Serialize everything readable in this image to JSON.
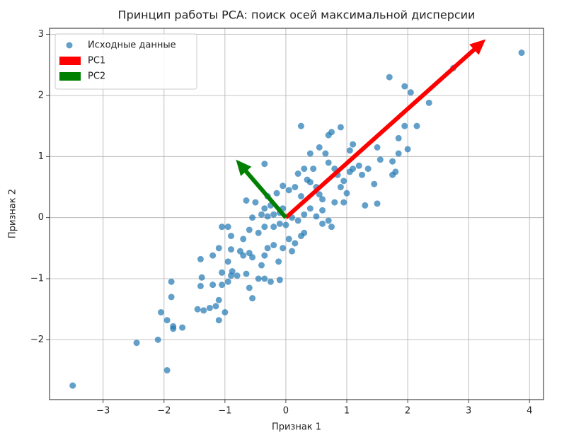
{
  "chart_data": {
    "type": "scatter",
    "title": "Принцип работы PCA: поиск осей максимальной дисперсии",
    "xlabel": "Признак 1",
    "ylabel": "Признак 2",
    "xlim": [
      -3.88,
      4.23
    ],
    "ylim": [
      -2.98,
      3.1
    ],
    "xticks": [
      {
        "value": -3,
        "label": "−3"
      },
      {
        "value": -2,
        "label": "−2"
      },
      {
        "value": -1,
        "label": "−1"
      },
      0,
      1,
      2,
      3,
      4
    ],
    "yticks": [
      {
        "value": -2,
        "label": "−2"
      },
      {
        "value": -1,
        "label": "−1"
      },
      0,
      1,
      2,
      3
    ],
    "grid": true,
    "legend": "upper left",
    "series": [
      {
        "name": "Исходные данные",
        "color": "#1f77b4",
        "x": [
          -3.5,
          -2.45,
          -2.1,
          -1.95,
          -2.05,
          -1.95,
          -1.85,
          -1.85,
          -1.7,
          -1.88,
          -1.88,
          -1.45,
          -1.35,
          -1.25,
          -1.15,
          -1.1,
          -1.0,
          -1.1,
          -1.4,
          -1.2,
          -1.05,
          -1.38,
          -1.05,
          -0.95,
          -0.9,
          -0.88,
          -0.8,
          -0.65,
          -0.6,
          -0.55,
          -0.45,
          -0.35,
          -0.25,
          -0.1,
          -1.4,
          -1.2,
          -0.95,
          -1.1,
          -0.9,
          -0.75,
          -0.7,
          -0.6,
          -0.55,
          -0.4,
          -0.35,
          -0.3,
          -0.2,
          -0.12,
          -0.05,
          0.05,
          0.15,
          0.1,
          -0.95,
          -1.05,
          -0.9,
          -0.7,
          -0.6,
          -0.45,
          -0.35,
          -0.2,
          -0.1,
          0.0,
          0.3,
          -0.55,
          -0.4,
          -0.3,
          -0.2,
          -0.1,
          -0.65,
          -0.5,
          -0.35,
          -0.25,
          -0.05,
          -0.3,
          -0.15,
          -0.35,
          -0.05,
          0.05,
          0.15,
          0.25,
          0.35,
          0.45,
          0.4,
          0.5,
          0.55,
          0.6,
          0.3,
          0.2,
          0.25,
          0.4,
          0.55,
          0.65,
          0.7,
          0.75,
          0.9,
          0.7,
          0.8,
          0.85,
          0.9,
          0.95,
          1.0,
          1.05,
          1.05,
          1.1,
          1.1,
          1.2,
          1.25,
          1.3,
          1.35,
          1.45,
          1.5,
          1.5,
          1.55,
          1.75,
          1.8,
          1.75,
          1.85,
          1.85,
          1.95,
          2.0,
          2.15,
          1.7,
          1.95,
          2.05,
          2.35,
          2.75,
          3.87,
          0.4,
          0.5,
          0.6,
          0.7,
          0.75,
          0.8,
          0.6,
          0.3,
          0.2,
          0.1,
          0.95,
          0.25
        ],
        "y": [
          -2.75,
          -2.05,
          -2.0,
          -2.5,
          -1.55,
          -1.68,
          -1.78,
          -1.82,
          -1.8,
          -1.3,
          -1.05,
          -1.5,
          -1.52,
          -1.48,
          -1.45,
          -1.68,
          -1.55,
          -1.35,
          -1.12,
          -1.1,
          -1.1,
          -0.98,
          -0.9,
          -1.05,
          -0.95,
          -0.88,
          -0.95,
          -0.92,
          -1.15,
          -1.32,
          -1.0,
          -1.0,
          -1.05,
          -1.02,
          -0.68,
          -0.62,
          -0.72,
          -0.5,
          -0.52,
          -0.55,
          -0.62,
          -0.58,
          -0.65,
          -0.78,
          -0.62,
          -0.5,
          -0.45,
          -0.72,
          -0.5,
          -0.35,
          -0.42,
          -0.55,
          -0.15,
          -0.15,
          -0.3,
          -0.35,
          -0.2,
          -0.25,
          -0.15,
          -0.15,
          -0.1,
          -0.12,
          -0.25,
          0.0,
          0.05,
          0.02,
          0.05,
          0.08,
          0.28,
          0.25,
          0.15,
          0.2,
          0.15,
          0.35,
          0.4,
          0.88,
          0.52,
          0.45,
          0.5,
          0.35,
          0.62,
          0.8,
          0.58,
          0.5,
          0.38,
          0.3,
          0.8,
          0.72,
          1.5,
          1.05,
          1.15,
          1.05,
          1.35,
          1.4,
          1.48,
          0.9,
          0.8,
          0.7,
          0.5,
          0.6,
          0.4,
          0.75,
          1.1,
          1.2,
          0.8,
          0.85,
          0.7,
          0.2,
          0.8,
          0.55,
          0.23,
          1.15,
          0.95,
          0.92,
          0.75,
          0.7,
          1.05,
          1.3,
          1.5,
          1.12,
          1.5,
          2.3,
          2.15,
          2.05,
          1.88,
          2.45,
          2.7,
          0.15,
          0.02,
          -0.1,
          -0.05,
          -0.15,
          0.25,
          0.12,
          0.05,
          -0.05,
          0.0,
          0.25,
          -0.3
        ]
      }
    ],
    "arrows": [
      {
        "name": "PC1",
        "color": "#ff0000",
        "x": 0,
        "y": 0,
        "dx": 3.28,
        "dy": 2.92
      },
      {
        "name": "PC2",
        "color": "#008000",
        "x": 0,
        "y": 0,
        "dx": -0.82,
        "dy": 0.95
      }
    ]
  }
}
